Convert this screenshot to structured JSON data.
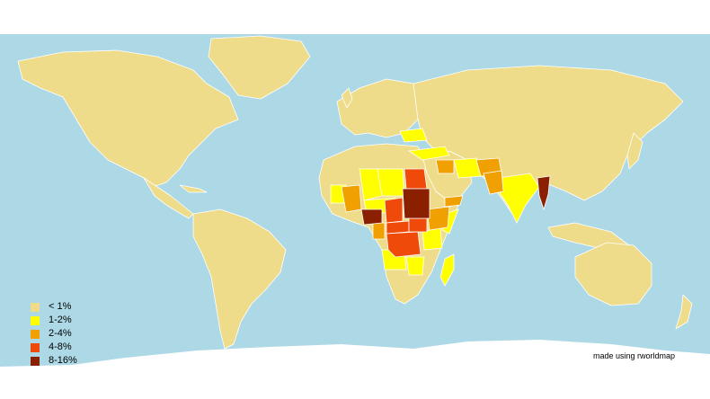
{
  "legend": {
    "items": [
      {
        "label": "< 1%",
        "color": "#eedc8a"
      },
      {
        "label": "1-2%",
        "color": "#ffff00"
      },
      {
        "label": "2-4%",
        "color": "#f0a000"
      },
      {
        "label": "4-8%",
        "color": "#f04a0a"
      },
      {
        "label": "8-16%",
        "color": "#8b2000"
      }
    ]
  },
  "credit": "made using rworldmap",
  "colors": {
    "ocean": "#add8e6",
    "land_default": "#eedc8a",
    "background": "#ffffff"
  },
  "categories": {
    "8-16%": [
      "Sudan",
      "Nigeria",
      "Myanmar"
    ],
    "4-8%": [
      "Egypt",
      "Central African Republic",
      "Democratic Republic of the Congo",
      "South Sudan",
      "Chad"
    ],
    "2-4%": [
      "Ethiopia",
      "Afghanistan",
      "Pakistan",
      "Mali",
      "Iraq",
      "Yemen",
      "Cameroon"
    ],
    "1-2%": [
      "India",
      "Libya",
      "Niger",
      "Algeria",
      "Turkey",
      "Iran",
      "Syria",
      "Saudi Arabia",
      "Kenya",
      "Somalia",
      "Angola",
      "Zambia",
      "Tanzania",
      "Mozambique",
      "Madagascar",
      "Ukraine",
      "Burkina Faso",
      "Guinea",
      "Mauritania",
      "Uganda",
      "Congo",
      "Zimbabwe"
    ]
  }
}
